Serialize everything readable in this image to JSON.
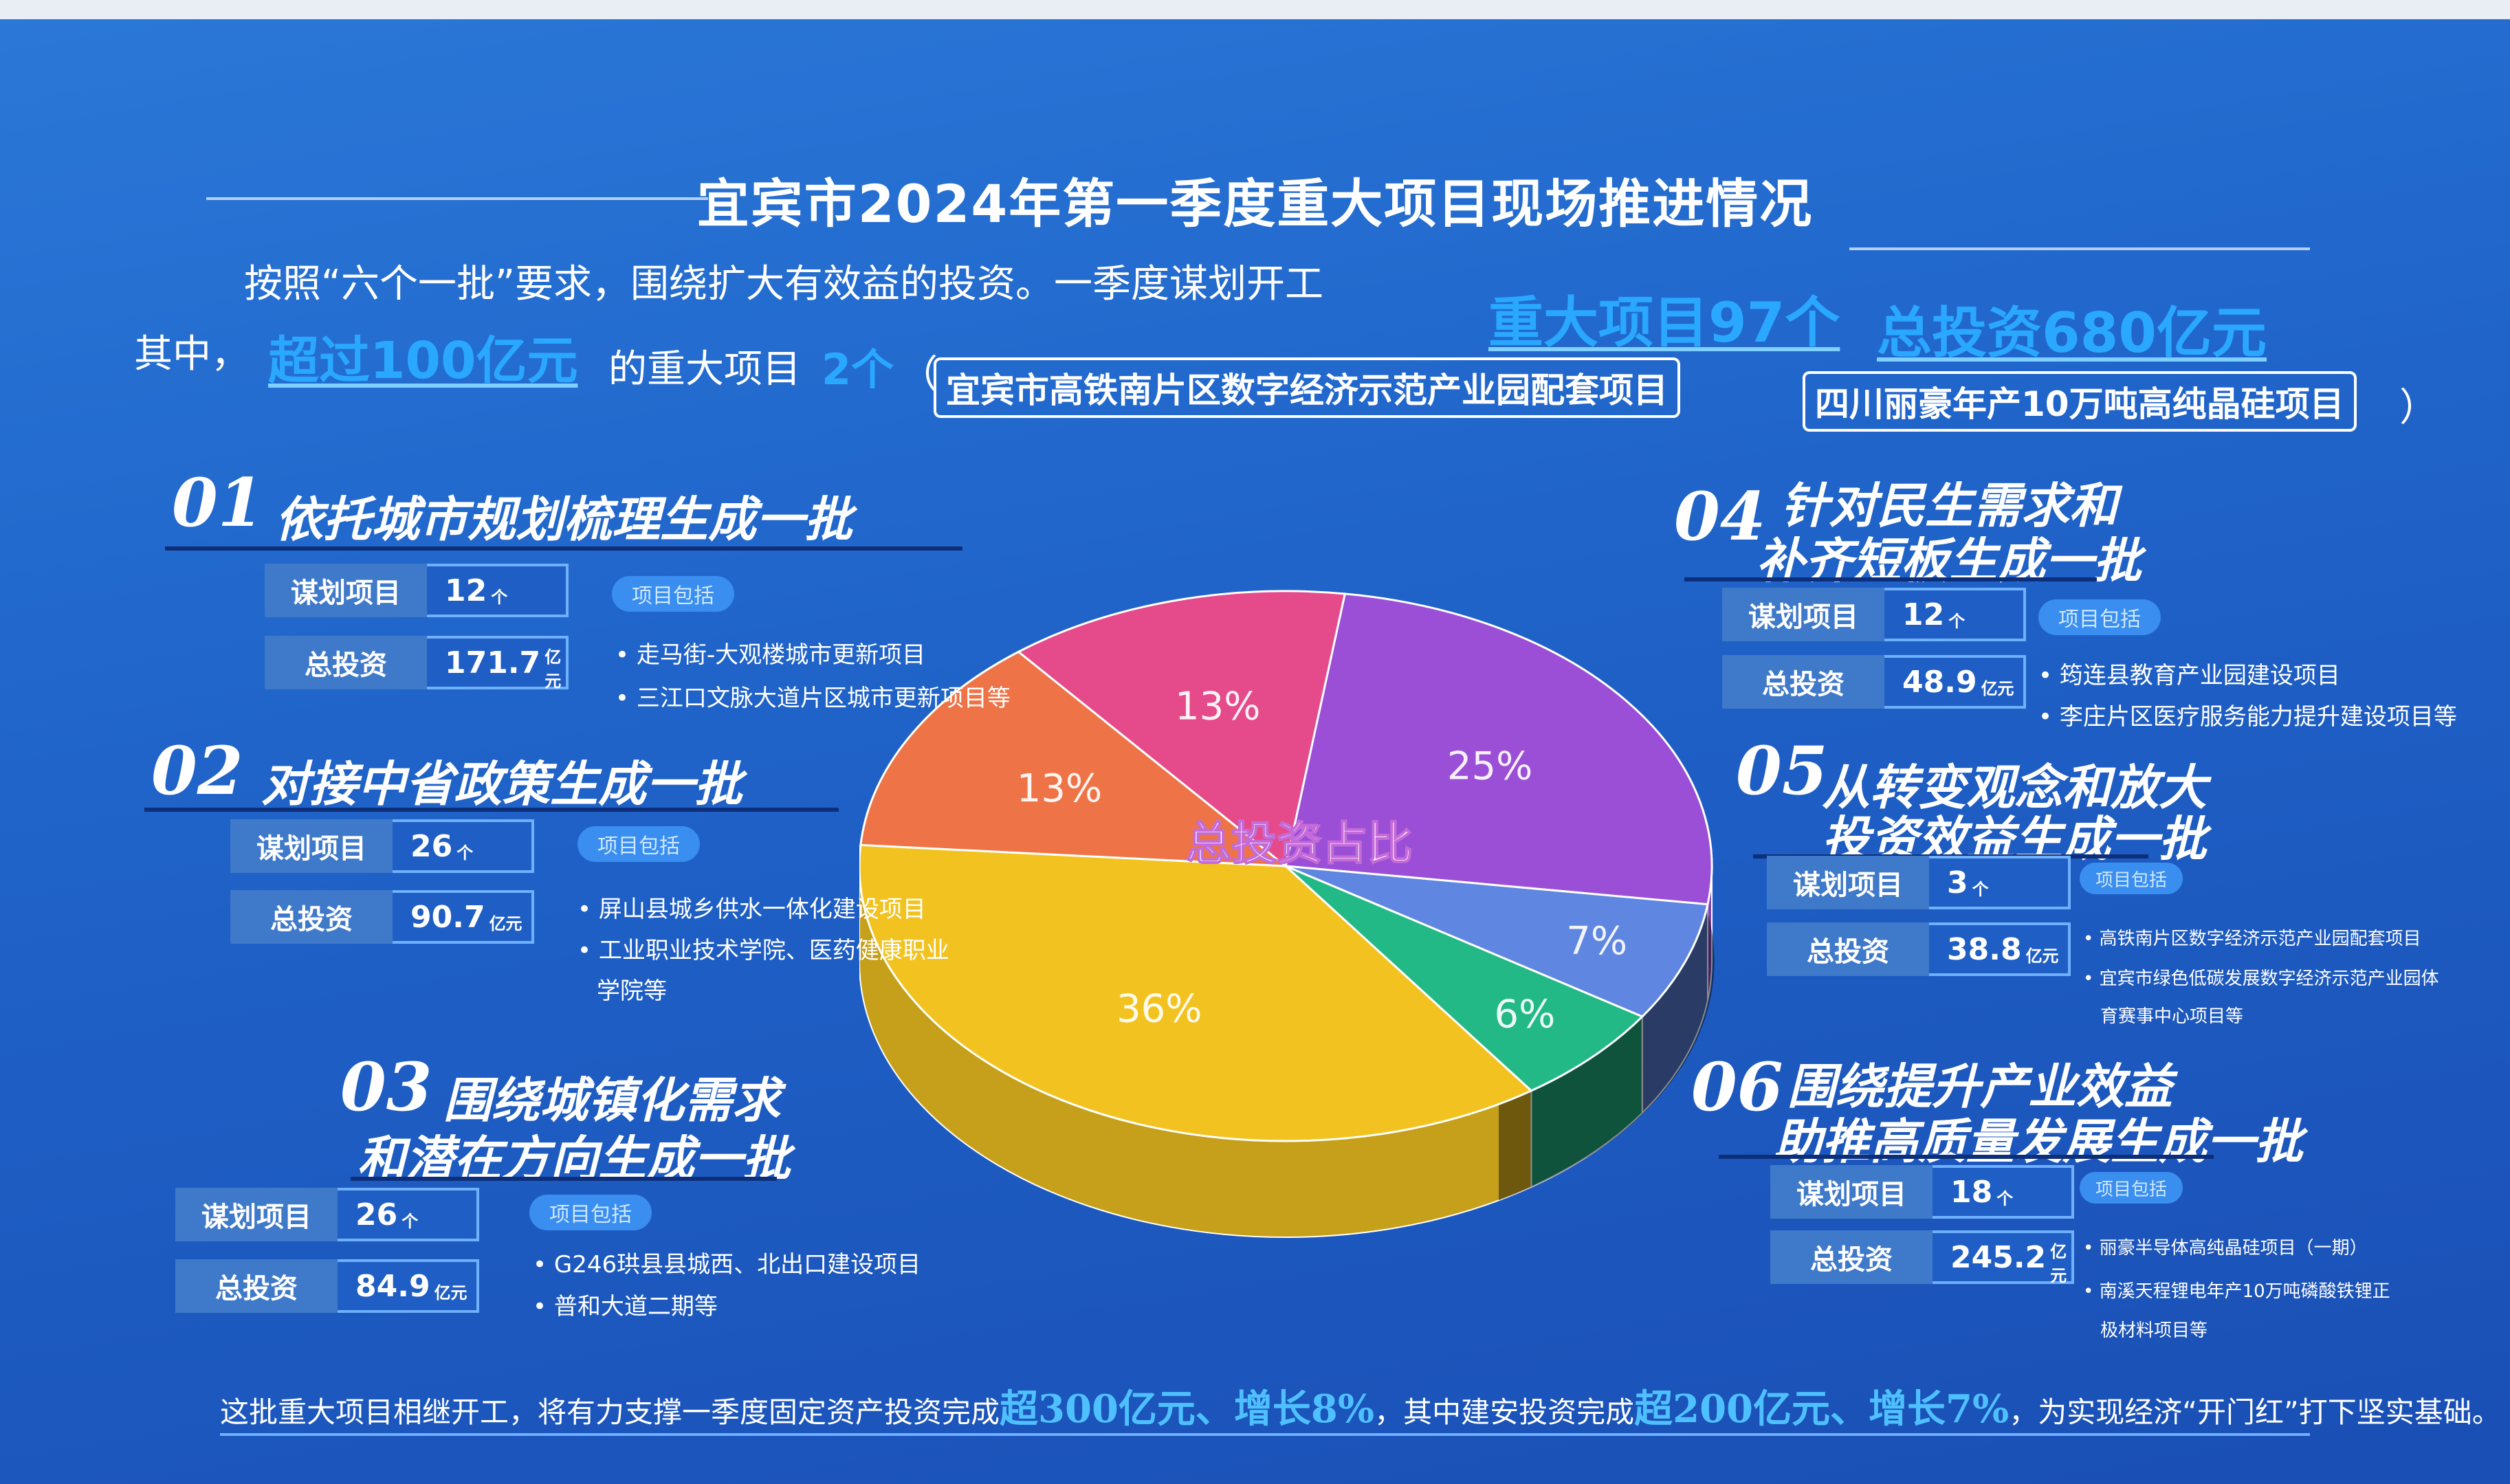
{
  "title": "宜宾市2024年第一季度重大项目现场推进情况",
  "intro": {
    "line1_text": "按照“六个一批”要求，围绕扩大有效益的投资。一季度谋划开工",
    "hl_projects": "重大项目97个",
    "hl_investment": "总投资680亿元",
    "line2_prefix": "其中，",
    "hl_over100": "超过100亿元",
    "line2_mid": "的重大项目",
    "hl_count": "2个",
    "paren_open": "（",
    "project_a": "宜宾市高铁南片区数字经济示范产业园配套项目",
    "project_b": "四川丽豪年产10万吨高纯晶硅项目",
    "paren_close": "）"
  },
  "labels": {
    "planned": "谋划项目",
    "investment": "总投资",
    "includes": "项目包括"
  },
  "sections": [
    {
      "num": "01",
      "title": "依托城市规划梳理生成一批",
      "count": "12",
      "count_unit": "个",
      "invest": "171.7",
      "invest_unit": "亿元",
      "items": [
        "• 走马街-大观楼城市更新项目",
        "• 三江口文脉大道片区城市更新项目等"
      ]
    },
    {
      "num": "02",
      "title": "对接中省政策生成一批",
      "count": "26",
      "count_unit": "个",
      "invest": "90.7",
      "invest_unit": "亿元",
      "items": [
        "• 屏山县城乡供水一体化建设项目",
        "• 工业职业技术学院、医药健康职业",
        "学院等"
      ]
    },
    {
      "num": "03",
      "title_line1": "围绕城镇化需求",
      "title_line2": "和潜在方向生成一批",
      "count": "26",
      "count_unit": "个",
      "invest": "84.9",
      "invest_unit": "亿元",
      "items": [
        "• G246珙县县城西、北出口建设项目",
        "• 普和大道二期等"
      ]
    },
    {
      "num": "04",
      "title_line1": "针对民生需求和",
      "title_line2": "补齐短板生成一批",
      "count": "12",
      "count_unit": "个",
      "invest": "48.9",
      "invest_unit": "亿元",
      "items": [
        "• 筠连县教育产业园建设项目",
        "• 李庄片区医疗服务能力提升建设项目等"
      ]
    },
    {
      "num": "05",
      "title_line1": "从转变观念和放大",
      "title_line2": "投资效益生成一批",
      "count": "3",
      "count_unit": "个",
      "invest": "38.8",
      "invest_unit": "亿元",
      "items": [
        "• 高铁南片区数字经济示范产业园配套项目",
        "• 宜宾市绿色低碳发展数字经济示范产业园体",
        "育赛事中心项目等"
      ]
    },
    {
      "num": "06",
      "title_line1": "围绕提升产业效益",
      "title_line2": "助推高质量发展生成一批",
      "count": "18",
      "count_unit": "个",
      "invest": "245.2",
      "invest_unit": "亿元",
      "items": [
        "• 丽豪半导体高纯晶硅项目（一期）",
        "• 南溪天程锂电年产10万吨磷酸铁锂正",
        "极材料项目等"
      ]
    }
  ],
  "chart_data": {
    "type": "pie",
    "title": "总投资占比",
    "slices": [
      {
        "label": "25%",
        "value": 25,
        "color": "#9b4fd6"
      },
      {
        "label": "7%",
        "value": 7,
        "color": "#5f86e0"
      },
      {
        "label": "6%",
        "value": 6,
        "color": "#22b987"
      },
      {
        "label": "36%",
        "value": 36,
        "color": "#f2c320"
      },
      {
        "label": "13%",
        "value": 13,
        "color": "#ee7448"
      },
      {
        "label": "13%",
        "value": 13,
        "color": "#e54b8a"
      }
    ]
  },
  "footer": {
    "t1": "这批重大项目相继开工，将有力支撑一季度固定资产投资完成",
    "b1": "超300亿元、增长8%",
    "t2": "，其中建安投资完成",
    "b2": "超200亿元、增长7%",
    "t3": "，为实现经济“开门红”打下坚实基础。"
  }
}
